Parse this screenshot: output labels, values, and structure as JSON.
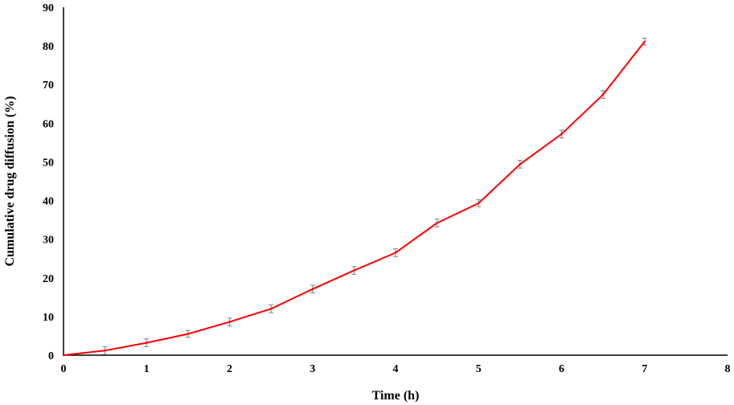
{
  "chart_data": {
    "type": "line",
    "title": "",
    "xlabel": "Time (h)",
    "ylabel": "Cumulative drug diffusion (%)",
    "xlim": [
      0,
      8
    ],
    "ylim": [
      0,
      90
    ],
    "xticks": [
      0,
      1,
      2,
      3,
      4,
      5,
      6,
      7,
      8
    ],
    "yticks": [
      0,
      10,
      20,
      30,
      40,
      50,
      60,
      70,
      80,
      90
    ],
    "grid": false,
    "legend": "none",
    "line_color": "#ff0000",
    "errorbar_color": "#808080",
    "series": [
      {
        "x": [
          0,
          0.5,
          1,
          1.5,
          2,
          2.5,
          3,
          3.5,
          4,
          4.5,
          5,
          5.5,
          6,
          6.5,
          7
        ],
        "y": [
          0,
          1.2,
          3.2,
          5.5,
          8.6,
          12.0,
          17.1,
          21.9,
          26.5,
          34.2,
          39.3,
          49.4,
          57.2,
          67.4,
          81.1
        ],
        "error": [
          0,
          1.0,
          1.0,
          0.9,
          1.0,
          1.0,
          1.0,
          1.0,
          1.0,
          1.0,
          0.9,
          1.0,
          1.0,
          1.0,
          0.9
        ]
      }
    ]
  }
}
